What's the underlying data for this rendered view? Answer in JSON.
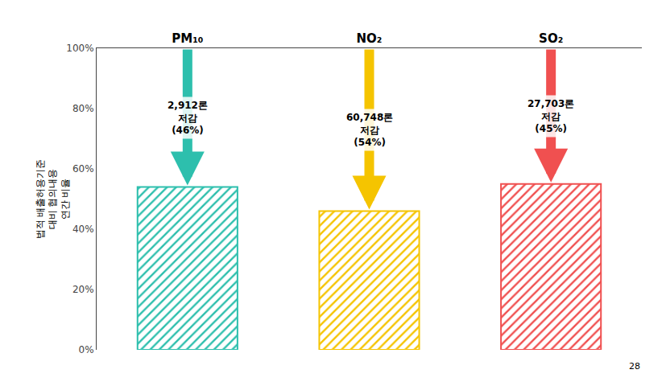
{
  "chart_data": {
    "type": "bar",
    "categories": [
      "PM₁₀",
      "NO₂",
      "SO₂"
    ],
    "values": [
      0.54,
      0.46,
      0.55
    ],
    "colors": [
      "#2dbfad",
      "#f5c400",
      "#f05050"
    ],
    "ylabel": "법적 배출허용기준\n대비 협의내용\n연간 비율",
    "ylim": [
      0,
      1.0
    ],
    "yticks": [
      {
        "value": 0.0,
        "label": "0%"
      },
      {
        "value": 0.2,
        "label": "20%"
      },
      {
        "value": 0.4,
        "label": "40%"
      },
      {
        "value": 0.6,
        "label": "60%"
      },
      {
        "value": 0.8,
        "label": "80%"
      },
      {
        "value": 1.0,
        "label": "100%"
      }
    ],
    "grid": false,
    "annotations": [
      {
        "category": "PM₁₀",
        "text": "2,912론\n저감\n(46%)"
      },
      {
        "category": "NO₂",
        "text": "60,748론\n저감\n(54%)"
      },
      {
        "category": "SO₂",
        "text": "27,703론\n저감\n(45%)"
      },
      {
        "text": "28"
      }
    ]
  }
}
